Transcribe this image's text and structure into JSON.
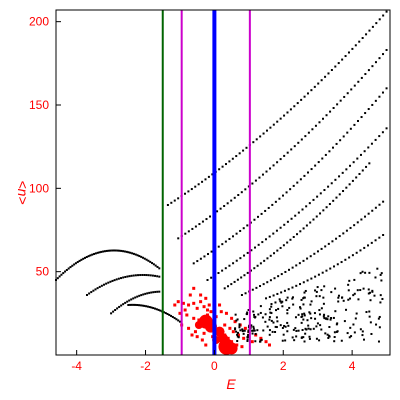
{
  "chart_data": {
    "type": "scatter",
    "xlabel": "E",
    "ylabel": "<n>",
    "xlim": [
      -4.6,
      5.1
    ],
    "ylim": [
      0,
      207
    ],
    "x_ticks": [
      {
        "value": -4,
        "label": "-4"
      },
      {
        "value": -2,
        "label": "-2"
      },
      {
        "value": 0,
        "label": "0"
      },
      {
        "value": 2,
        "label": "2"
      },
      {
        "value": 4,
        "label": "4"
      }
    ],
    "y_ticks": [
      {
        "value": 50,
        "label": "50"
      },
      {
        "value": 100,
        "label": "100"
      },
      {
        "value": 150,
        "label": "150"
      },
      {
        "value": 200,
        "label": "200"
      }
    ],
    "vertical_lines": [
      {
        "x": -1.5,
        "color": "#006400",
        "width": 2
      },
      {
        "x": -0.95,
        "color": "#cc00cc",
        "width": 2
      },
      {
        "x": 0.0,
        "color": "#0000ff",
        "width": 4
      },
      {
        "x": 1.03,
        "color": "#cc00cc",
        "width": 2
      }
    ],
    "black_curves": [
      {
        "start": [
          -1.35,
          90
        ],
        "end": [
          5.0,
          206
        ],
        "curv": -8,
        "n": 65
      },
      {
        "start": [
          -1.05,
          70
        ],
        "end": [
          5.0,
          183
        ],
        "curv": -8,
        "n": 60
      },
      {
        "start": [
          -0.6,
          55
        ],
        "end": [
          5.0,
          160
        ],
        "curv": -8,
        "n": 55
      },
      {
        "start": [
          -0.2,
          45
        ],
        "end": [
          5.0,
          136
        ],
        "curv": -6,
        "n": 50
      },
      {
        "start": [
          0.3,
          40
        ],
        "end": [
          4.5,
          115
        ],
        "curv": -5,
        "n": 45
      },
      {
        "start": [
          0.8,
          36
        ],
        "end": [
          4.9,
          92
        ],
        "curv": -4,
        "n": 40
      },
      {
        "start": [
          1.5,
          34
        ],
        "end": [
          4.9,
          72
        ],
        "curv": -3,
        "n": 32
      },
      {
        "start": [
          -4.6,
          45
        ],
        "end": [
          -1.6,
          52
        ],
        "curv": 14,
        "n": 58
      },
      {
        "start": [
          -3.7,
          36
        ],
        "end": [
          -1.6,
          47
        ],
        "curv": 5,
        "n": 35
      },
      {
        "start": [
          -3.0,
          25
        ],
        "end": [
          -1.6,
          38
        ],
        "curv": 3,
        "n": 25
      },
      {
        "start": [
          -2.5,
          30
        ],
        "end": [
          -1.0,
          20
        ],
        "curv": 3,
        "n": 30
      }
    ],
    "black_cloud": {
      "xrange": [
        0.6,
        5.0
      ],
      "yrange": [
        8,
        55
      ],
      "count": 260,
      "seed": 7
    },
    "red_points": [
      [
        -1.05,
        32
      ],
      [
        -0.9,
        31
      ],
      [
        -0.75,
        30
      ],
      [
        -0.6,
        31
      ],
      [
        -0.5,
        28
      ],
      [
        -0.4,
        32
      ],
      [
        -0.3,
        29
      ],
      [
        -0.2,
        27
      ],
      [
        -0.1,
        26
      ],
      [
        -0.2,
        24
      ],
      [
        0.05,
        23
      ],
      [
        0.2,
        26
      ],
      [
        0.35,
        25
      ],
      [
        0.5,
        22
      ],
      [
        0.6,
        20
      ],
      [
        0.75,
        18
      ],
      [
        0.9,
        16
      ],
      [
        1.0,
        14
      ],
      [
        1.2,
        12
      ],
      [
        1.35,
        10
      ],
      [
        1.5,
        8
      ],
      [
        1.6,
        6
      ],
      [
        -0.8,
        24
      ],
      [
        -0.6,
        22
      ],
      [
        -0.45,
        21
      ],
      [
        -0.35,
        20
      ],
      [
        -0.25,
        19
      ],
      [
        -0.15,
        18
      ],
      [
        -0.1,
        17
      ],
      [
        0.0,
        16
      ],
      [
        0.1,
        15
      ],
      [
        0.2,
        14
      ],
      [
        0.3,
        12
      ],
      [
        0.4,
        10
      ],
      [
        0.5,
        8
      ],
      [
        0.65,
        6
      ],
      [
        0.8,
        5
      ],
      [
        -0.55,
        14
      ],
      [
        -0.5,
        11
      ],
      [
        -0.35,
        9
      ],
      [
        -0.25,
        6
      ],
      [
        -0.6,
        40
      ],
      [
        -0.7,
        36
      ],
      [
        -0.85,
        27
      ],
      [
        -1.0,
        25
      ],
      [
        -1.15,
        30
      ],
      [
        -0.4,
        36
      ],
      [
        -0.25,
        34
      ],
      [
        -0.15,
        30
      ],
      [
        0.15,
        30
      ],
      [
        0.3,
        18
      ],
      [
        0.45,
        16
      ],
      [
        0.55,
        14
      ],
      [
        0.7,
        12
      ],
      [
        0.85,
        10
      ],
      [
        1.1,
        8
      ],
      [
        -0.95,
        18
      ],
      [
        -0.75,
        16
      ],
      [
        -0.65,
        12
      ],
      [
        -0.3,
        13
      ],
      [
        -0.05,
        11
      ],
      [
        0.1,
        9
      ],
      [
        0.25,
        7
      ],
      [
        0.35,
        4
      ]
    ],
    "red_blobs": [
      [
        -0.25,
        20,
        7
      ],
      [
        -0.1,
        17,
        6
      ],
      [
        0.15,
        14,
        5
      ],
      [
        0.35,
        5,
        8
      ],
      [
        0.5,
        4,
        6
      ],
      [
        -0.45,
        18,
        4
      ],
      [
        0.05,
        9,
        4
      ],
      [
        0.25,
        10,
        5
      ]
    ]
  }
}
